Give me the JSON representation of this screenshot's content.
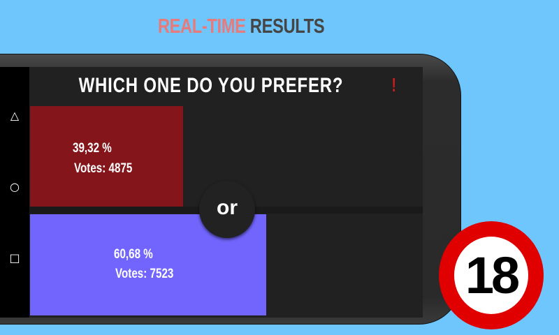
{
  "header": {
    "title_part1": "REAL-TIME",
    "title_part2": "RESULTS"
  },
  "colors": {
    "background": "#6ec6fc",
    "option1": "#84161b",
    "option2": "#7165fd",
    "accent_title": "#e77b7b",
    "badge_red": "#e00000"
  },
  "navbar": {
    "icons": [
      "back-triangle-icon",
      "home-circle-icon",
      "recents-square-icon"
    ]
  },
  "app": {
    "question": "WHICH ONE DO YOU PREFER?",
    "alert": "!",
    "separator": "or",
    "options": [
      {
        "percent": "39,32 %",
        "votes": "Votes: 4875",
        "share": 39.32
      },
      {
        "percent": "60,68 %",
        "votes": "Votes: 7523",
        "share": 60.68
      }
    ]
  },
  "badge": {
    "label": "18"
  }
}
